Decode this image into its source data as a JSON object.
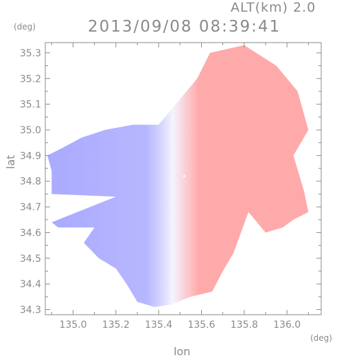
{
  "header": {
    "altitude_label": "ALT(km) 2.0",
    "timestamp": "2013/09/08 08:39:41"
  },
  "chart_data": {
    "type": "heatmap",
    "title": "2013/09/08 08:39:41",
    "subtitle": "ALT(km) 2.0",
    "xlabel": "lon",
    "ylabel": "lat",
    "x_unit": "(deg)",
    "y_unit": "(deg)",
    "xlim": [
      134.87,
      136.16
    ],
    "ylim": [
      34.28,
      35.34
    ],
    "x_ticks": [
      135.0,
      135.2,
      135.4,
      135.6,
      135.8,
      136.0
    ],
    "x_tick_labels": [
      "135.0",
      "135.2",
      "135.4",
      "135.6",
      "135.8",
      "136.0"
    ],
    "y_ticks": [
      34.3,
      34.4,
      34.5,
      34.6,
      34.7,
      34.8,
      34.9,
      35.0,
      35.1,
      35.2,
      35.3
    ],
    "y_tick_labels": [
      "34.3",
      "34.4",
      "34.5",
      "34.6",
      "34.7",
      "34.8",
      "34.9",
      "35.0",
      "35.1",
      "35.2",
      "35.3"
    ],
    "grid": false,
    "radar_center": [
      135.52,
      34.82
    ],
    "colors": {
      "negative": "#aaaaff",
      "neutral": "#f4f4ff",
      "positive": "#ffaaaa",
      "axis": "#8a8a8a"
    },
    "echo_region_outline": [
      [
        135.4,
        35.02
      ],
      [
        135.58,
        35.2
      ],
      [
        135.64,
        35.3
      ],
      [
        135.8,
        35.33
      ],
      [
        135.95,
        35.25
      ],
      [
        136.05,
        35.15
      ],
      [
        136.1,
        35.0
      ],
      [
        136.03,
        34.9
      ],
      [
        136.08,
        34.76
      ],
      [
        136.1,
        34.68
      ],
      [
        136.03,
        34.65
      ],
      [
        135.98,
        34.62
      ],
      [
        135.9,
        34.6
      ],
      [
        135.82,
        34.68
      ],
      [
        135.75,
        34.52
      ],
      [
        135.7,
        34.45
      ],
      [
        135.65,
        34.37
      ],
      [
        135.55,
        34.35
      ],
      [
        135.46,
        34.32
      ],
      [
        135.38,
        34.31
      ],
      [
        135.3,
        34.33
      ],
      [
        135.25,
        34.4
      ],
      [
        135.2,
        34.46
      ],
      [
        135.12,
        34.5
      ],
      [
        135.05,
        34.56
      ],
      [
        135.1,
        34.62
      ],
      [
        134.93,
        34.62
      ],
      [
        134.9,
        34.64
      ],
      [
        135.2,
        34.74
      ],
      [
        134.9,
        34.75
      ],
      [
        134.9,
        34.84
      ],
      [
        134.88,
        34.9
      ],
      [
        134.95,
        34.93
      ],
      [
        135.04,
        34.97
      ],
      [
        135.15,
        35.0
      ],
      [
        135.28,
        35.02
      ]
    ]
  }
}
